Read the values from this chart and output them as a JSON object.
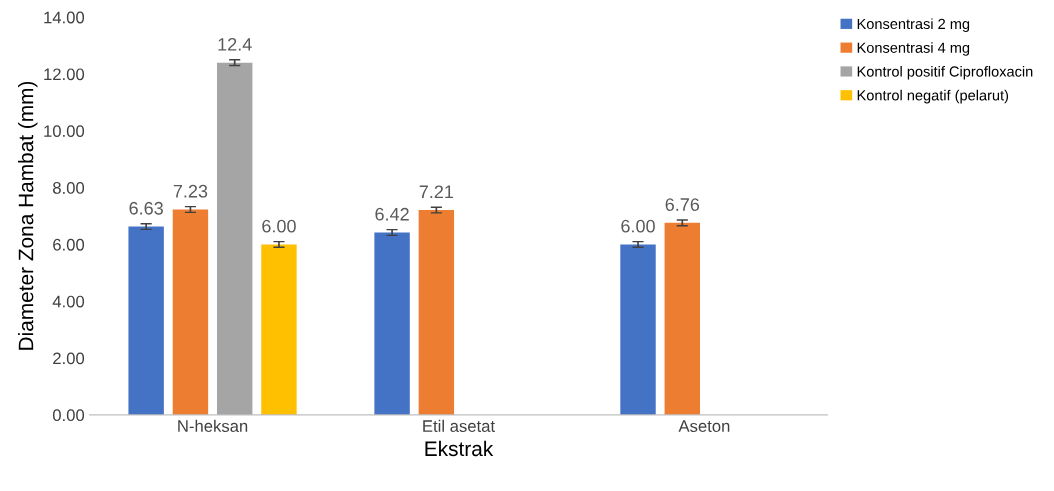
{
  "chart_data": {
    "type": "bar",
    "xlabel": "Ekstrak",
    "ylabel": "Diameter Zona Hambat (mm)",
    "categories": [
      "N-heksan",
      "Etil asetat",
      "Aseton"
    ],
    "series": [
      {
        "name": "Konsentrasi 2 mg",
        "color": "#4472c4",
        "values": [
          6.63,
          6.42,
          6.0
        ],
        "errors": [
          0.1,
          0.1,
          0.1
        ],
        "value_labels": [
          "6.63",
          "6.42",
          "6.00"
        ]
      },
      {
        "name": "Konsentrasi 4 mg",
        "color": "#ed7d31",
        "values": [
          7.23,
          7.21,
          6.76
        ],
        "errors": [
          0.1,
          0.1,
          0.1
        ],
        "value_labels": [
          "7.23",
          "7.21",
          "6.76"
        ]
      },
      {
        "name": "Kontrol positif Ciprofloxacin",
        "color": "#a5a5a5",
        "values": [
          12.4,
          null,
          null
        ],
        "errors": [
          0.1,
          null,
          null
        ],
        "value_labels": [
          "12.4",
          null,
          null
        ]
      },
      {
        "name": "Kontrol negatif (pelarut)",
        "color": "#ffc000",
        "values": [
          6.0,
          null,
          null
        ],
        "errors": [
          0.1,
          null,
          null
        ],
        "value_labels": [
          "6.00",
          null,
          null
        ]
      }
    ],
    "ylim": [
      0,
      14
    ],
    "yticks": [
      {
        "value": 0,
        "label": "0.00"
      },
      {
        "value": 2,
        "label": "2.00"
      },
      {
        "value": 4,
        "label": "4.00"
      },
      {
        "value": 6,
        "label": "6.00"
      },
      {
        "value": 8,
        "label": "8.00"
      },
      {
        "value": 10,
        "label": "10.00"
      },
      {
        "value": 12,
        "label": "12.00"
      },
      {
        "value": 14,
        "label": "14.00"
      }
    ],
    "grid": false,
    "legend": "top right"
  }
}
